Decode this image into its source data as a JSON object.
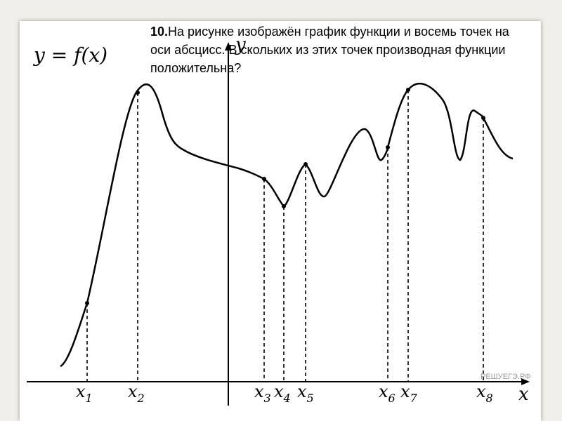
{
  "question": {
    "number": "10.",
    "text": "На рисунке изображён график функции  и восемь точек на оси абсцисс.  В скольких из этих точек производная функции  положительна?"
  },
  "graph": {
    "function_label": "y = f(x)",
    "y_axis_label": "y",
    "x_axis_label": "x",
    "points": [
      {
        "name": "x",
        "sub": "1"
      },
      {
        "name": "x",
        "sub": "2"
      },
      {
        "name": "x",
        "sub": "3"
      },
      {
        "name": "x",
        "sub": "4"
      },
      {
        "name": "x",
        "sub": "5"
      },
      {
        "name": "x",
        "sub": "6"
      },
      {
        "name": "x",
        "sub": "7"
      },
      {
        "name": "x",
        "sub": "8"
      }
    ],
    "watermark": "РЕШУЕГЭ.РФ"
  }
}
